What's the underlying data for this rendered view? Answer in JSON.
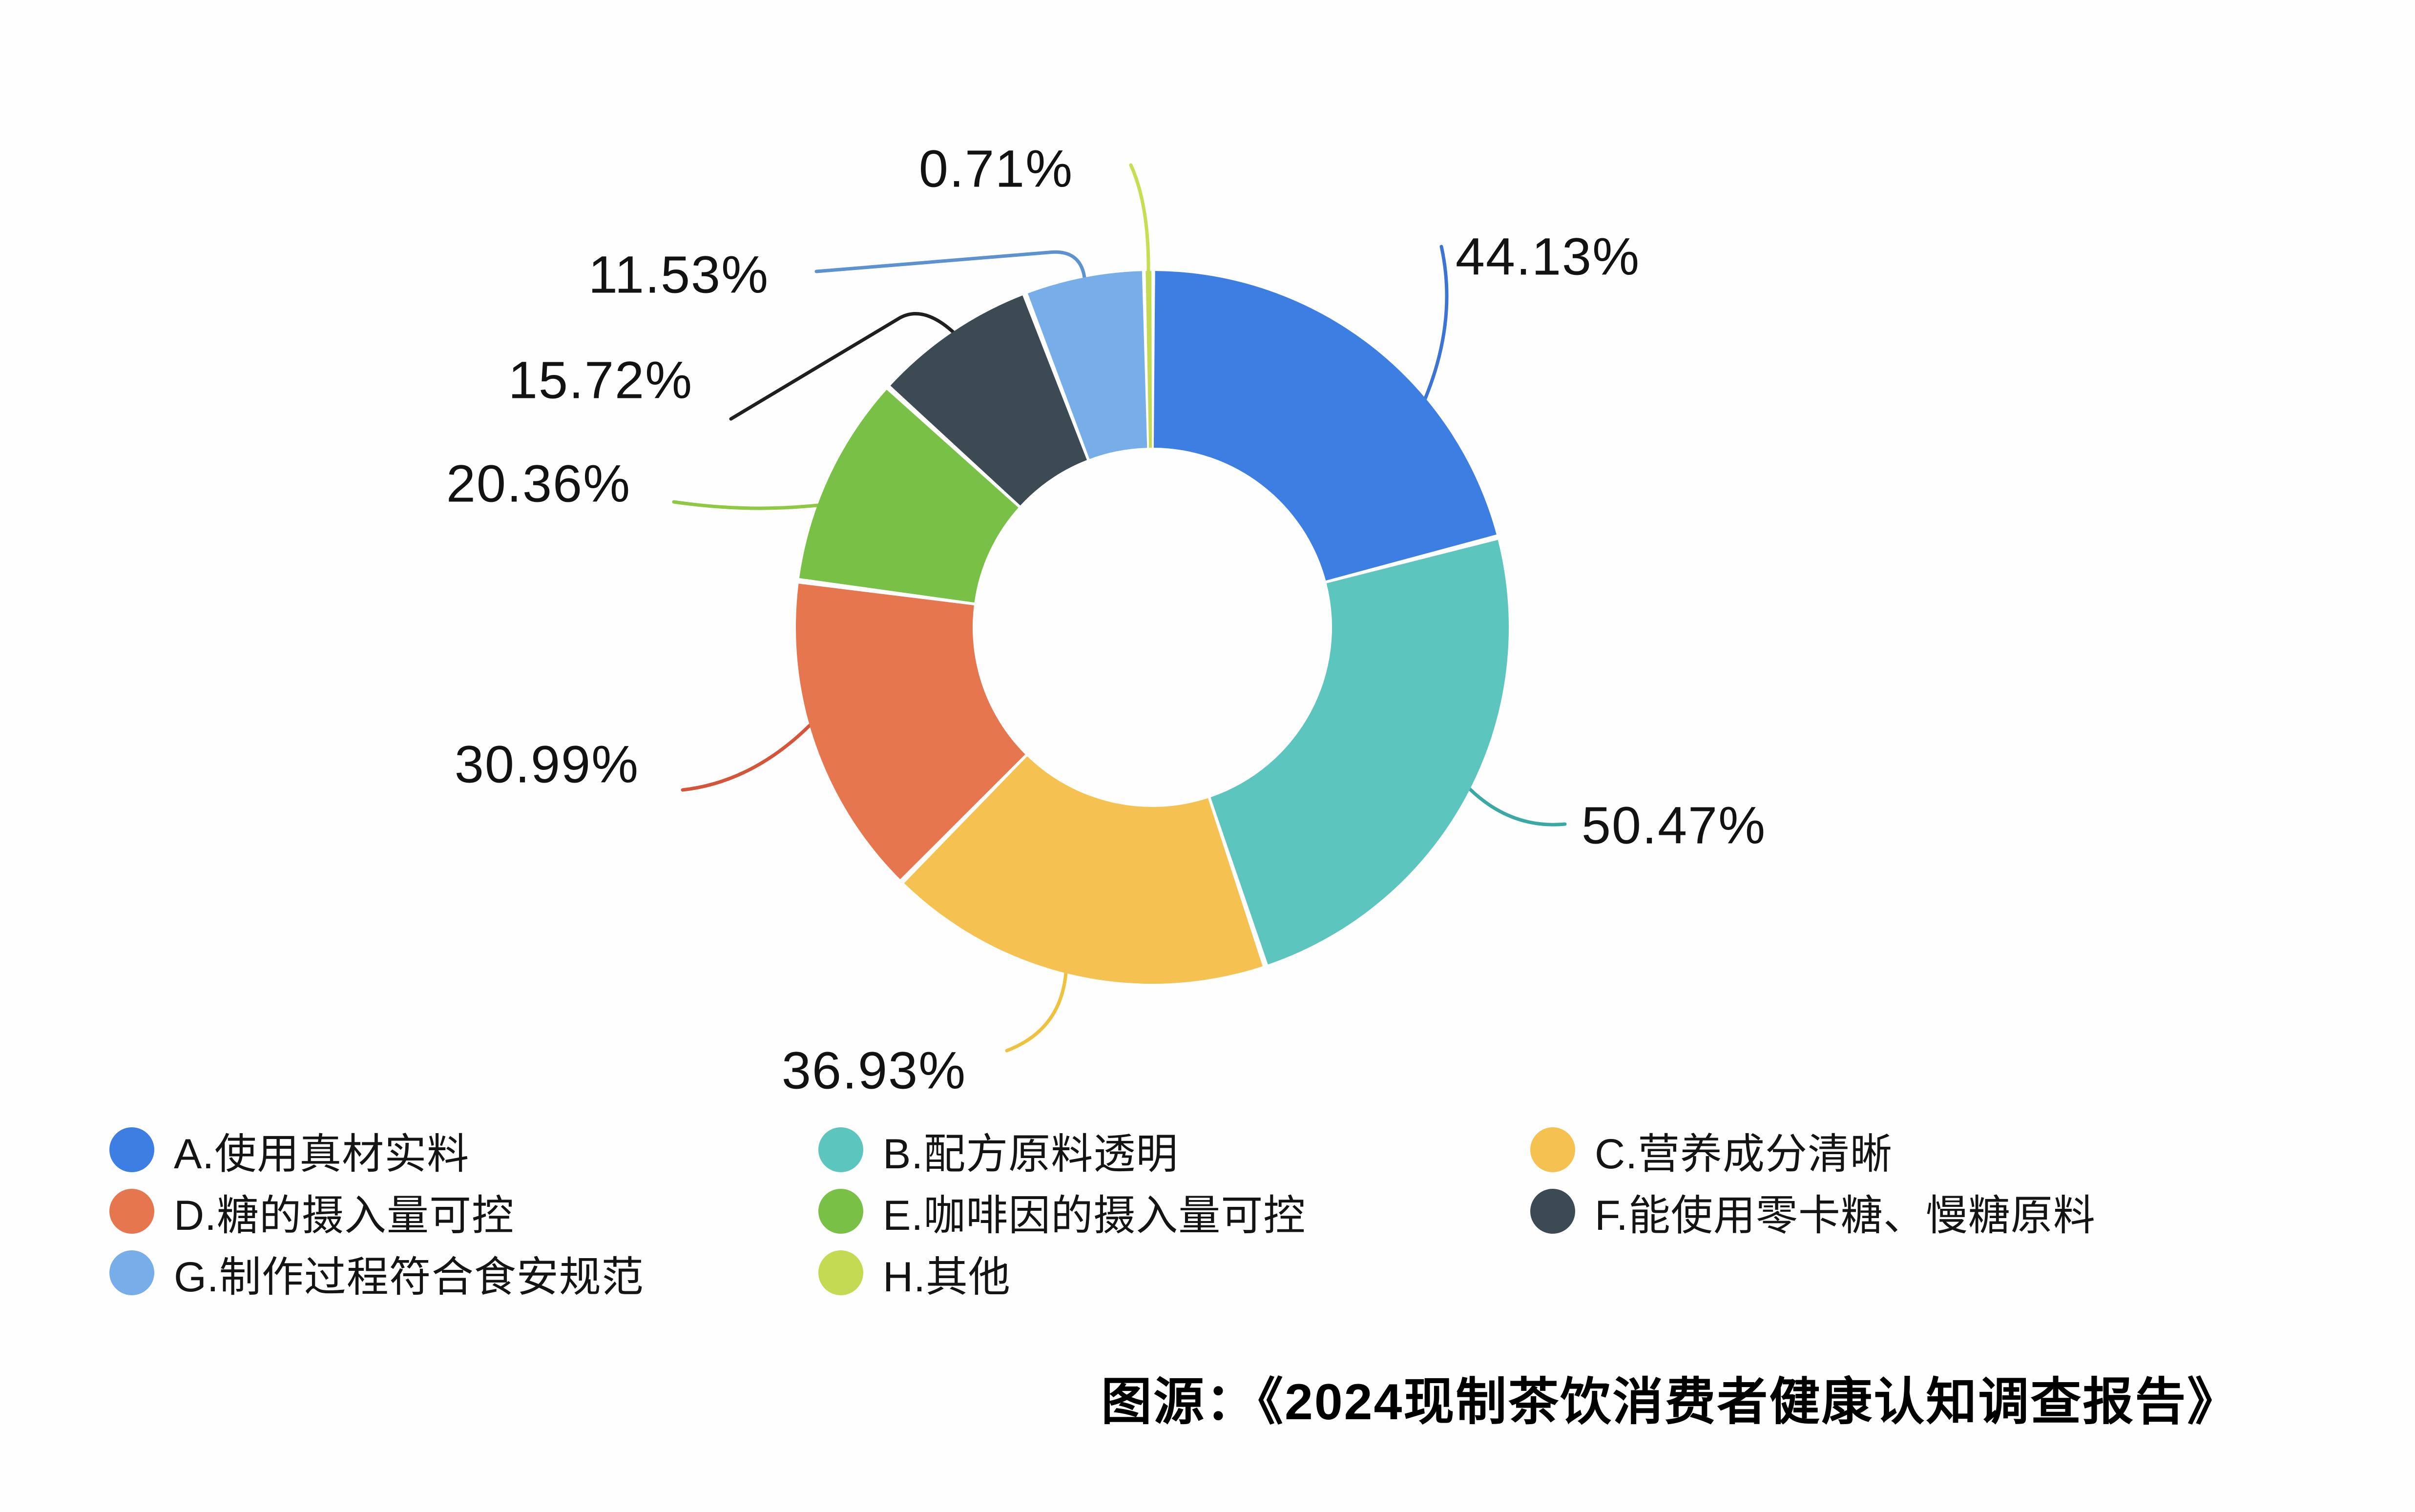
{
  "chart_data": {
    "type": "pie",
    "subtype": "donut",
    "title": "",
    "direction": "clockwise",
    "start_angle_deg": 0,
    "value_suffix": "%",
    "legend_position": "bottom",
    "slices": [
      {
        "option": "A",
        "label": "A.使用真材实料",
        "value": 44.13,
        "color": "#3d7ee2",
        "line_color": "#3b74d2"
      },
      {
        "option": "B",
        "label": "B.配方原料透明",
        "value": 50.47,
        "color": "#5cc5bd",
        "line_color": "#3aa9a4"
      },
      {
        "option": "C",
        "label": "C.营养成分清晰",
        "value": 36.93,
        "color": "#f5c150",
        "line_color": "#ecc23e"
      },
      {
        "option": "D",
        "label": "D.糖的摄入量可控",
        "value": 30.99,
        "color": "#e5764e",
        "line_color": "#d4553a"
      },
      {
        "option": "E",
        "label": "E.咖啡因的摄入量可控",
        "value": 20.36,
        "color": "#79c146",
        "line_color": "#8fc843"
      },
      {
        "option": "F",
        "label": "F.能使用零卡糖、慢糖原料",
        "value": 15.72,
        "color": "#3c4a54",
        "line_color": "#1f1f1f"
      },
      {
        "option": "G",
        "label": "G.制作过程符合食安规范",
        "value": 11.53,
        "color": "#77aee9",
        "line_color": "#5b92cf"
      },
      {
        "option": "H",
        "label": "H.其他",
        "value": 0.71,
        "color": "#c3da52",
        "line_color": "#c9dd52"
      }
    ]
  },
  "source": {
    "text": "图源：《2024现制茶饮消费者健康认知调查报告》"
  }
}
